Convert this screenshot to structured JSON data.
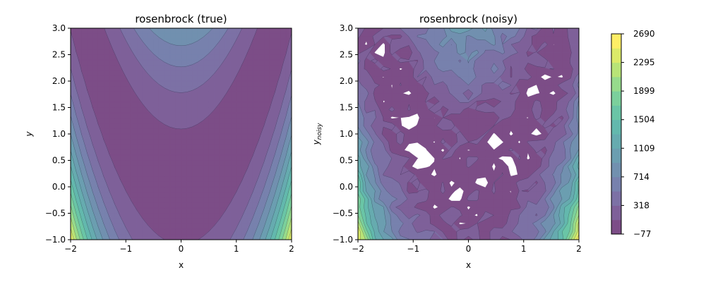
{
  "chart_data": {
    "type": "contour",
    "function": "rosenbrock",
    "xlim": [
      -2,
      2
    ],
    "ylim": [
      -1,
      3
    ],
    "x_ticks": [
      "−2",
      "−1",
      "0",
      "1",
      "2"
    ],
    "y_ticks": [
      "−1.0",
      "−0.5",
      "0.0",
      "0.5",
      "1.0",
      "1.5",
      "2.0",
      "2.5",
      "3.0"
    ],
    "grid": false,
    "colormap": "viridis",
    "alpha": 0.7,
    "panels": [
      {
        "title": "rosenbrock (true)",
        "xlabel": "x",
        "ylabel": "y",
        "noisy": false
      },
      {
        "title": "rosenbrock (noisy)",
        "xlabel": "x",
        "ylabel": "y",
        "ylabel_subscript": "noisy",
        "noisy": true
      }
    ],
    "colorbar": {
      "min": -77,
      "max": 2690,
      "tick_labels": [
        "−77",
        "318",
        "714",
        "1109",
        "1504",
        "1899",
        "2295",
        "2690"
      ],
      "levels": [
        -77,
        120.6,
        318.3,
        515.9,
        713.6,
        911.2,
        1108.9,
        1306.5,
        1504.1,
        1701.8,
        1899.4,
        2097.1,
        2294.7,
        2492.4,
        2690
      ]
    }
  }
}
